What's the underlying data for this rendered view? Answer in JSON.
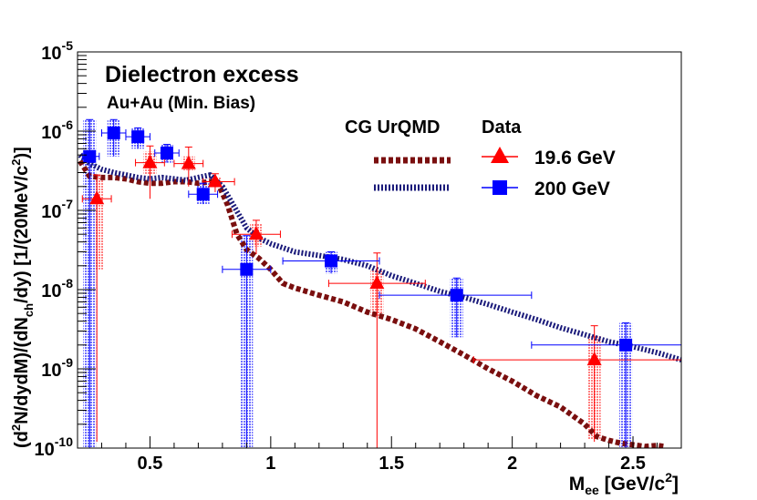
{
  "chart_data": {
    "type": "scatter",
    "title": "Dielectron excess",
    "subtitle": "Au+Au (Min. Bias)",
    "xlabel": {
      "main": "M",
      "sub": "ee",
      "unit_prefix": " [GeV/c",
      "unit_sup": "2",
      "unit_suffix": "]"
    },
    "ylabel": {
      "p1": "(d",
      "p1sup": "2",
      "p2": "N/dydM)/(dN",
      "p2sub": "ch",
      "p3": "/dy) [1/(20MeV/c",
      "p3sup": "2",
      "p4": ")]"
    },
    "xlim": [
      0.2,
      2.7
    ],
    "ylim": [
      1e-10,
      1e-05
    ],
    "yscale": "log",
    "xticks": [
      {
        "v": 0.5,
        "label": "0.5"
      },
      {
        "v": 1,
        "label": "1"
      },
      {
        "v": 1.5,
        "label": "1.5"
      },
      {
        "v": 2,
        "label": "2"
      },
      {
        "v": 2.5,
        "label": "2.5"
      }
    ],
    "yticks": [
      {
        "v": 1e-10,
        "base": "10",
        "exp": "-10"
      },
      {
        "v": 1e-09,
        "base": "10",
        "exp": "-9"
      },
      {
        "v": 1e-08,
        "base": "10",
        "exp": "-8"
      },
      {
        "v": 1e-07,
        "base": "10",
        "exp": "-7"
      },
      {
        "v": 1e-06,
        "base": "10",
        "exp": "-6"
      },
      {
        "v": 1e-05,
        "base": "10",
        "exp": "-5"
      }
    ],
    "legend": {
      "model_header": "CG UrQMD",
      "data_header": "Data",
      "entries": [
        "19.6 GeV",
        "200 GeV"
      ]
    },
    "colors": {
      "red": "#ff0000",
      "darkred": "#7a0f0f",
      "blue": "#0000ff",
      "navy": "#1a1a7a",
      "redband": "#ff9a9a",
      "blueband": "#8888ff"
    },
    "series": [
      {
        "name": "19.6 GeV",
        "marker": "triangle",
        "points": [
          {
            "x": 0.28,
            "y": 1.4e-07,
            "xlo": 0.22,
            "xhi": 0.34,
            "ylo": 1.2e-10,
            "yhi": 2.8e-07,
            "sylo": 1.8e-08,
            "syhi": 2.8e-07
          },
          {
            "x": 0.5,
            "y": 4e-07,
            "xlo": 0.44,
            "xhi": 0.56,
            "ylo": 1.4e-07,
            "yhi": 6.5e-07,
            "sylo": 2.8e-07,
            "syhi": 5.5e-07
          },
          {
            "x": 0.66,
            "y": 3.9e-07,
            "xlo": 0.6,
            "xhi": 0.72,
            "ylo": 2e-07,
            "yhi": 6.3e-07,
            "sylo": 3.2e-07,
            "syhi": 4.8e-07
          },
          {
            "x": 0.77,
            "y": 2.3e-07,
            "xlo": 0.72,
            "xhi": 0.85,
            "ylo": 1.7e-07,
            "yhi": 2.9e-07,
            "sylo": 2e-07,
            "syhi": 2.6e-07
          },
          {
            "x": 0.94,
            "y": 5e-08,
            "xlo": 0.84,
            "xhi": 1.04,
            "ylo": 2.8e-08,
            "yhi": 7.5e-08,
            "sylo": 3.5e-08,
            "syhi": 6.8e-08
          },
          {
            "x": 1.44,
            "y": 1.2e-08,
            "xlo": 1.24,
            "xhi": 1.64,
            "ylo": 1e-10,
            "yhi": 2.9e-08,
            "sylo": 4.5e-09,
            "syhi": 1.8e-08
          },
          {
            "x": 2.34,
            "y": 1.3e-09,
            "xlo": 1.84,
            "xhi": 2.7,
            "ylo": 1.2e-10,
            "yhi": 3.5e-09,
            "sylo": 1.3e-10,
            "syhi": 2.6e-09
          }
        ]
      },
      {
        "name": "200 GeV",
        "marker": "square",
        "points": [
          {
            "x": 0.25,
            "y": 4.8e-07,
            "xlo": 0.22,
            "xhi": 0.29,
            "ylo": 1e-10,
            "yhi": 1.4e-06,
            "sylo": 1e-10,
            "syhi": 1.4e-06
          },
          {
            "x": 0.35,
            "y": 9.5e-07,
            "xlo": 0.3,
            "xhi": 0.4,
            "ylo": 4.8e-07,
            "yhi": 1.4e-06,
            "sylo": 4.8e-07,
            "syhi": 1.4e-06
          },
          {
            "x": 0.45,
            "y": 8.5e-07,
            "xlo": 0.4,
            "xhi": 0.5,
            "ylo": 6e-07,
            "yhi": 1.1e-06,
            "sylo": 6e-07,
            "syhi": 1.1e-06
          },
          {
            "x": 0.57,
            "y": 5.3e-07,
            "xlo": 0.52,
            "xhi": 0.62,
            "ylo": 4e-07,
            "yhi": 6.8e-07,
            "sylo": 4e-07,
            "syhi": 6.8e-07
          },
          {
            "x": 0.72,
            "y": 1.6e-07,
            "xlo": 0.66,
            "xhi": 0.78,
            "ylo": 1.2e-07,
            "yhi": 2.2e-07,
            "sylo": 1.2e-07,
            "syhi": 2.2e-07
          },
          {
            "x": 0.9,
            "y": 1.8e-08,
            "xlo": 0.8,
            "xhi": 1.0,
            "ylo": 1e-10,
            "yhi": 4.8e-08,
            "sylo": 1e-10,
            "syhi": 4.8e-08
          },
          {
            "x": 1.25,
            "y": 2.3e-08,
            "xlo": 1.05,
            "xhi": 1.45,
            "ylo": 1.6e-08,
            "yhi": 3e-08,
            "sylo": 1.6e-08,
            "syhi": 3e-08
          },
          {
            "x": 1.77,
            "y": 8.5e-09,
            "xlo": 1.45,
            "xhi": 2.08,
            "ylo": 2.5e-09,
            "yhi": 1.4e-08,
            "sylo": 2.5e-09,
            "syhi": 1.4e-08
          },
          {
            "x": 2.47,
            "y": 2e-09,
            "xlo": 2.08,
            "xhi": 2.7,
            "ylo": 1e-10,
            "yhi": 3.8e-09,
            "sylo": 1e-10,
            "syhi": 3.8e-09
          }
        ]
      }
    ],
    "model_curves": [
      {
        "name": "CG UrQMD 19.6 GeV",
        "style": "dashed-red",
        "points": [
          [
            0.21,
            4.2e-07
          ],
          [
            0.25,
            2.7e-07
          ],
          [
            0.3,
            2.6e-07
          ],
          [
            0.35,
            2.6e-07
          ],
          [
            0.4,
            2.5e-07
          ],
          [
            0.45,
            2.3e-07
          ],
          [
            0.5,
            2.2e-07
          ],
          [
            0.55,
            2.2e-07
          ],
          [
            0.6,
            2.3e-07
          ],
          [
            0.65,
            2.3e-07
          ],
          [
            0.7,
            2.2e-07
          ],
          [
            0.75,
            2.3e-07
          ],
          [
            0.78,
            2.25e-07
          ],
          [
            0.82,
            1.2e-07
          ],
          [
            0.86,
            5e-08
          ],
          [
            0.9,
            3.2e-08
          ],
          [
            0.95,
            2.5e-08
          ],
          [
            1.0,
            1.8e-08
          ],
          [
            1.05,
            1.2e-08
          ],
          [
            1.1,
            1.05e-08
          ],
          [
            1.2,
            8.5e-09
          ],
          [
            1.3,
            7e-09
          ],
          [
            1.4,
            5.2e-09
          ],
          [
            1.5,
            4.2e-09
          ],
          [
            1.6,
            3.2e-09
          ],
          [
            1.7,
            2.2e-09
          ],
          [
            1.8,
            1.5e-09
          ],
          [
            1.9,
            1e-09
          ],
          [
            2.0,
            7e-10
          ],
          [
            2.1,
            4.6e-10
          ],
          [
            2.2,
            3.3e-10
          ],
          [
            2.3,
            2e-10
          ],
          [
            2.35,
            1.4e-10
          ],
          [
            2.4,
            1.25e-10
          ],
          [
            2.45,
            1.15e-10
          ],
          [
            2.5,
            1.1e-10
          ],
          [
            2.55,
            1.05e-10
          ],
          [
            2.6,
            1.08e-10
          ],
          [
            2.63,
            1.05e-10
          ]
        ]
      },
      {
        "name": "CG UrQMD 200 GeV",
        "style": "dotted-blue",
        "points": [
          [
            0.21,
            5e-07
          ],
          [
            0.25,
            3.9e-07
          ],
          [
            0.3,
            3.3e-07
          ],
          [
            0.35,
            3e-07
          ],
          [
            0.4,
            2.8e-07
          ],
          [
            0.45,
            2.6e-07
          ],
          [
            0.5,
            2.5e-07
          ],
          [
            0.55,
            2.6e-07
          ],
          [
            0.6,
            2.5e-07
          ],
          [
            0.65,
            2.4e-07
          ],
          [
            0.7,
            2.6e-07
          ],
          [
            0.75,
            2.8e-07
          ],
          [
            0.8,
            2e-07
          ],
          [
            0.85,
            1.1e-07
          ],
          [
            0.9,
            6e-08
          ],
          [
            0.95,
            4.5e-08
          ],
          [
            1.0,
            3.8e-08
          ],
          [
            1.1,
            3e-08
          ],
          [
            1.2,
            2.7e-08
          ],
          [
            1.3,
            2.4e-08
          ],
          [
            1.4,
            2e-08
          ],
          [
            1.5,
            1.5e-08
          ],
          [
            1.6,
            1.2e-08
          ],
          [
            1.7,
            9.5e-09
          ],
          [
            1.8,
            8e-09
          ],
          [
            1.9,
            6.5e-09
          ],
          [
            2.0,
            5.2e-09
          ],
          [
            2.1,
            4.2e-09
          ],
          [
            2.2,
            3.3e-09
          ],
          [
            2.3,
            2.7e-09
          ],
          [
            2.4,
            2.2e-09
          ],
          [
            2.5,
            1.9e-09
          ],
          [
            2.6,
            1.6e-09
          ],
          [
            2.7,
            1.3e-09
          ]
        ]
      }
    ]
  }
}
